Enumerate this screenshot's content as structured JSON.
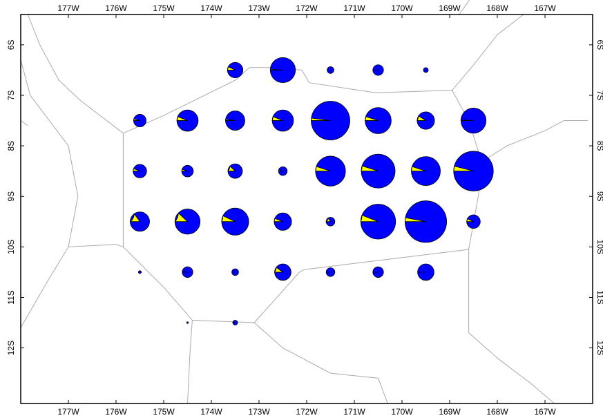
{
  "map": {
    "frame": {
      "lon_ticks": [
        "177W",
        "176W",
        "175W",
        "174W",
        "173W",
        "172W",
        "171W",
        "170W",
        "169W",
        "168W",
        "167W"
      ],
      "lat_ticks": [
        "6S",
        "7S",
        "8S",
        "9S",
        "10S",
        "11S",
        "12S"
      ]
    },
    "colors": {
      "background": "#ffffff",
      "frame": "#000000",
      "region_lines": "#aaaaaa",
      "pie_primary": "#0000ff",
      "pie_secondary": "#ffff00",
      "pie_outline": "#000000"
    },
    "pies": [
      {
        "lon": -173.5,
        "lat": -6.5,
        "size": 1.6,
        "frac": 0.07
      },
      {
        "lon": -172.5,
        "lat": -6.5,
        "size": 2.6,
        "frac": 0.01
      },
      {
        "lon": -171.5,
        "lat": -6.5,
        "size": 0.7,
        "frac": 0.0
      },
      {
        "lon": -170.5,
        "lat": -6.5,
        "size": 1.1,
        "frac": 0.0
      },
      {
        "lon": -169.5,
        "lat": -6.5,
        "size": 0.5,
        "frac": 0.0
      },
      {
        "lon": -175.5,
        "lat": -7.5,
        "size": 1.3,
        "frac": 0.04
      },
      {
        "lon": -174.5,
        "lat": -7.5,
        "size": 2.2,
        "frac": 0.06
      },
      {
        "lon": -173.5,
        "lat": -7.5,
        "size": 2.0,
        "frac": 0.02
      },
      {
        "lon": -172.5,
        "lat": -7.5,
        "size": 2.2,
        "frac": 0.06
      },
      {
        "lon": -171.5,
        "lat": -7.5,
        "size": 4.0,
        "frac": 0.02
      },
      {
        "lon": -170.5,
        "lat": -7.5,
        "size": 2.7,
        "frac": 0.05
      },
      {
        "lon": -169.5,
        "lat": -7.5,
        "size": 1.8,
        "frac": 0.09
      },
      {
        "lon": -168.5,
        "lat": -7.5,
        "size": 2.6,
        "frac": 0.01
      },
      {
        "lon": -175.5,
        "lat": -8.5,
        "size": 1.4,
        "frac": 0.06
      },
      {
        "lon": -174.5,
        "lat": -8.5,
        "size": 1.2,
        "frac": 0.05
      },
      {
        "lon": -173.5,
        "lat": -8.5,
        "size": 1.5,
        "frac": 0.12
      },
      {
        "lon": -172.5,
        "lat": -8.5,
        "size": 0.9,
        "frac": 0.04
      },
      {
        "lon": -171.5,
        "lat": -8.5,
        "size": 3.1,
        "frac": 0.05
      },
      {
        "lon": -170.5,
        "lat": -8.5,
        "size": 3.5,
        "frac": 0.05
      },
      {
        "lon": -169.5,
        "lat": -8.5,
        "size": 3.0,
        "frac": 0.05
      },
      {
        "lon": -168.5,
        "lat": -8.5,
        "size": 4.1,
        "frac": 0.04
      },
      {
        "lon": -175.5,
        "lat": -9.5,
        "size": 2.0,
        "frac": 0.15
      },
      {
        "lon": -174.5,
        "lat": -9.5,
        "size": 2.6,
        "frac": 0.12
      },
      {
        "lon": -173.5,
        "lat": -9.5,
        "size": 2.8,
        "frac": 0.07
      },
      {
        "lon": -172.5,
        "lat": -9.5,
        "size": 1.8,
        "frac": 0.06
      },
      {
        "lon": -171.5,
        "lat": -9.5,
        "size": 0.9,
        "frac": 0.15
      },
      {
        "lon": -170.5,
        "lat": -9.5,
        "size": 3.6,
        "frac": 0.06
      },
      {
        "lon": -169.5,
        "lat": -9.5,
        "size": 4.3,
        "frac": 0.03
      },
      {
        "lon": -168.5,
        "lat": -9.5,
        "size": 1.4,
        "frac": 0.07
      },
      {
        "lon": -175.5,
        "lat": -10.5,
        "size": 0.3,
        "frac": 0.0
      },
      {
        "lon": -174.5,
        "lat": -10.5,
        "size": 1.1,
        "frac": 0.02
      },
      {
        "lon": -173.5,
        "lat": -10.5,
        "size": 0.7,
        "frac": 0.0
      },
      {
        "lon": -172.5,
        "lat": -10.5,
        "size": 1.7,
        "frac": 0.1
      },
      {
        "lon": -171.5,
        "lat": -10.5,
        "size": 0.9,
        "frac": 0.0
      },
      {
        "lon": -170.5,
        "lat": -10.5,
        "size": 1.1,
        "frac": 0.0
      },
      {
        "lon": -169.5,
        "lat": -10.5,
        "size": 1.7,
        "frac": 0.0
      },
      {
        "lon": -174.5,
        "lat": -11.5,
        "size": 0.15,
        "frac": 0.0
      },
      {
        "lon": -173.5,
        "lat": -11.5,
        "size": 0.5,
        "frac": 0.05
      }
    ],
    "regions": [
      [
        [
          -177.85,
          -5.4
        ],
        [
          -177.6,
          -6.0
        ],
        [
          -177.2,
          -6.7
        ],
        [
          -176.75,
          -7.1
        ],
        [
          -175.85,
          -7.75
        ],
        [
          -175.85,
          -9.0
        ],
        [
          -175.85,
          -10.0
        ],
        [
          -175.0,
          -10.8
        ],
        [
          -174.4,
          -11.45
        ],
        [
          -173.1,
          -11.5
        ],
        [
          -172.15,
          -10.5
        ],
        [
          -172.05,
          -10.45
        ],
        [
          -168.6,
          -10.05
        ],
        [
          -168.4,
          -9.0
        ],
        [
          -168.3,
          -8.3
        ],
        [
          -168.4,
          -8.1
        ],
        [
          -168.6,
          -7.5
        ],
        [
          -168.95,
          -6.9
        ],
        [
          -170.55,
          -6.95
        ],
        [
          -171.95,
          -6.75
        ],
        [
          -172.1,
          -6.5
        ],
        [
          -172.8,
          -6.45
        ],
        [
          -173.2,
          -6.45
        ],
        [
          -173.5,
          -6.7
        ],
        [
          -175.0,
          -7.4
        ],
        [
          -175.85,
          -7.75
        ]
      ],
      [
        [
          -178.0,
          -11.6
        ],
        [
          -177.45,
          -10.7
        ],
        [
          -177.0,
          -10.0
        ],
        [
          -176.0,
          -9.95
        ],
        [
          -175.85,
          -10.0
        ]
      ],
      [
        [
          -178.0,
          -6.3
        ],
        [
          -177.8,
          -7.0
        ],
        [
          -177.0,
          -8.0
        ],
        [
          -176.8,
          -9.0
        ],
        [
          -177.0,
          -10.0
        ]
      ],
      [
        [
          -177.85,
          -7.6
        ],
        [
          -178.0,
          -7.5
        ]
      ],
      [
        [
          -174.4,
          -11.45
        ],
        [
          -174.45,
          -12.1
        ],
        [
          -174.5,
          -13.1
        ]
      ],
      [
        [
          -173.1,
          -11.5
        ],
        [
          -172.5,
          -12.0
        ],
        [
          -171.5,
          -12.5
        ],
        [
          -170.5,
          -12.6
        ],
        [
          -170.3,
          -13.1
        ]
      ],
      [
        [
          -168.6,
          -10.05
        ],
        [
          -168.6,
          -11.7
        ],
        [
          -168.0,
          -12.2
        ],
        [
          -167.3,
          -12.7
        ],
        [
          -166.8,
          -13.1
        ]
      ],
      [
        [
          -168.3,
          -8.3
        ],
        [
          -167.8,
          -8.0
        ],
        [
          -167.0,
          -7.7
        ],
        [
          -166.6,
          -7.5
        ],
        [
          -166.1,
          -7.5
        ]
      ],
      [
        [
          -168.95,
          -6.9
        ],
        [
          -168.5,
          -6.4
        ],
        [
          -168.0,
          -5.8
        ],
        [
          -167.45,
          -5.4
        ],
        [
          -166.8,
          -5.4
        ]
      ],
      [
        [
          -168.8,
          -5.4
        ],
        [
          -168.5,
          -5.0
        ]
      ]
    ]
  }
}
